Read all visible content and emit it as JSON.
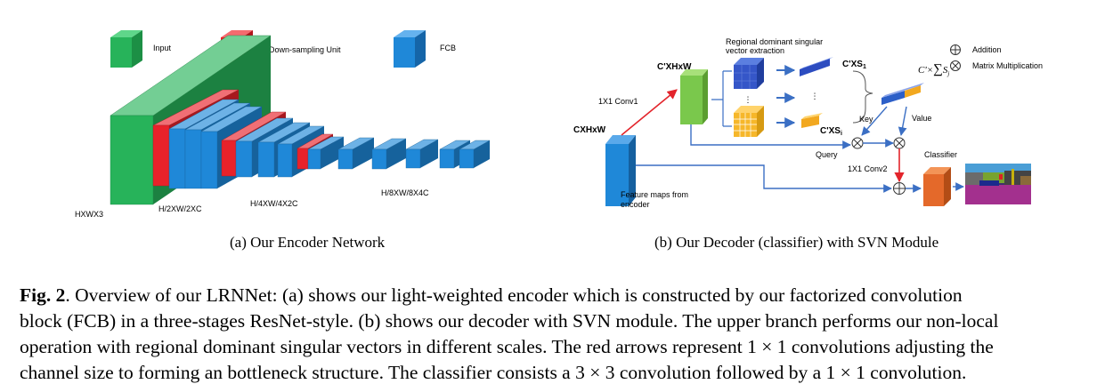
{
  "encoder": {
    "legend": {
      "input": "Input",
      "down": "Down-sampling Unit",
      "fcb": "FCB"
    },
    "dims": {
      "full": "HXWX3",
      "half": "H/2XW/2XC",
      "quarter": "H/4XW/4X2C",
      "eighth": "H/8XW/8X4C"
    },
    "colors": {
      "input": "#27b35a",
      "down": "#e8222a",
      "fcb": "#1f88d8"
    }
  },
  "decoder": {
    "extraction_title_1": "Regional dominant singular",
    "extraction_title_2": "vector extraction",
    "cpxhxw": "C'XHxW",
    "cxhxw": "CXHxW",
    "conv1": "1X1 Conv1",
    "conv2": "1X1 Conv2",
    "cps1": "C'XS",
    "cps1_sub": "1",
    "cpsi": "C'XS",
    "cpsi_sub": "i",
    "sum_base": "C'×",
    "sum_var": "S",
    "sum_sub": "j",
    "key": "Key",
    "value": "Value",
    "query": "Query",
    "classifier": "Classifier",
    "feature_1": "Feature maps from",
    "feature_2": "encoder",
    "legend_addition": "Addition",
    "legend_mult": "Matrix Multiplication",
    "ellipsis": "⋮"
  },
  "subcaptions": {
    "a": "(a)  Our Encoder Network",
    "b": "(b)  Our Decoder (classifier) with SVN Module"
  },
  "caption": {
    "label": "Fig. 2",
    "line1": ". Overview of our LRNNet: (a) shows our light-weighted encoder which is constructed by our factorized convolution",
    "line2": "block (FCB) in a three-stages ResNet-style. (b) shows our decoder with SVN module. The upper branch performs our non-local",
    "line3": "operation with regional dominant singular vectors in different scales. The red arrows represent 1 × 1 convolutions adjusting the",
    "line4": "channel size to forming an bottleneck structure. The classifier consists a 3 × 3 convolution followed by a 1 × 1 convolution."
  }
}
